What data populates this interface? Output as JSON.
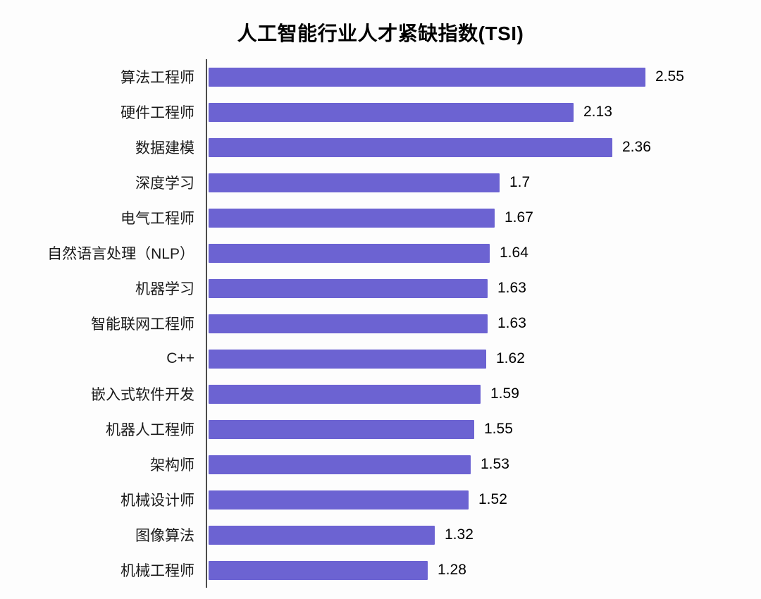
{
  "chart_data": {
    "type": "bar",
    "orientation": "horizontal",
    "title": "人工智能行业人才紧缺指数(TSI)",
    "categories": [
      "算法工程师",
      "硬件工程师",
      "数据建模",
      "深度学习",
      "电气工程师",
      "自然语言处理（NLP）",
      "机器学习",
      "智能联网工程师",
      "C++",
      "嵌入式软件开发",
      "机器人工程师",
      "架构师",
      "机械设计师",
      "图像算法",
      "机械工程师"
    ],
    "values": [
      2.55,
      2.13,
      2.36,
      1.7,
      1.67,
      1.64,
      1.63,
      1.63,
      1.62,
      1.59,
      1.55,
      1.53,
      1.52,
      1.32,
      1.28
    ],
    "value_labels": [
      "2.55",
      "2.13",
      "2.36",
      "1.7",
      "1.67",
      "1.64",
      "1.63",
      "1.63",
      "1.62",
      "1.59",
      "1.55",
      "1.53",
      "1.52",
      "1.32",
      "1.28"
    ],
    "xlabel": "",
    "ylabel": "",
    "xlim": [
      0,
      2.9
    ],
    "grid": "off",
    "legend": "none",
    "bar_color": "#6C63D2",
    "axis_line_color": "#4d4d4d"
  }
}
